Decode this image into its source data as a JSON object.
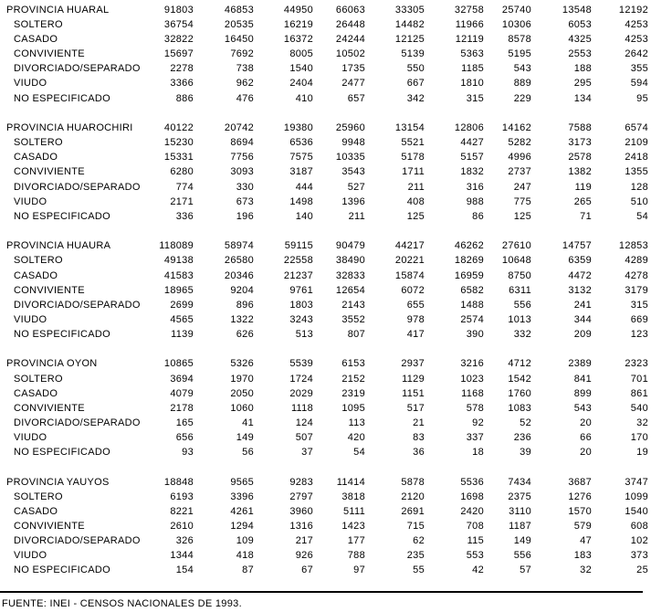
{
  "colors": {
    "background": "#ffffff",
    "text": "#000000",
    "rule": "#000000"
  },
  "table": {
    "blocks": [
      {
        "label": "PROVINCIA HUARAL",
        "totals": [
          91803,
          46853,
          44950,
          66063,
          33305,
          32758,
          25740,
          13548,
          12192
        ],
        "rows": [
          {
            "label": "SOLTERO",
            "values": [
              36754,
              20535,
              16219,
              26448,
              14482,
              11966,
              10306,
              6053,
              4253
            ]
          },
          {
            "label": "CASADO",
            "values": [
              32822,
              16450,
              16372,
              24244,
              12125,
              12119,
              8578,
              4325,
              4253
            ]
          },
          {
            "label": "CONVIVIENTE",
            "values": [
              15697,
              7692,
              8005,
              10502,
              5139,
              5363,
              5195,
              2553,
              2642
            ]
          },
          {
            "label": "DIVORCIADO/SEPARADO",
            "values": [
              2278,
              738,
              1540,
              1735,
              550,
              1185,
              543,
              188,
              355
            ]
          },
          {
            "label": "VIUDO",
            "values": [
              3366,
              962,
              2404,
              2477,
              667,
              1810,
              889,
              295,
              594
            ]
          },
          {
            "label": "NO ESPECIFICADO",
            "values": [
              886,
              476,
              410,
              657,
              342,
              315,
              229,
              134,
              95
            ]
          }
        ]
      },
      {
        "label": "PROVINCIA HUAROCHIRI",
        "totals": [
          40122,
          20742,
          19380,
          25960,
          13154,
          12806,
          14162,
          7588,
          6574
        ],
        "rows": [
          {
            "label": "SOLTERO",
            "values": [
              15230,
              8694,
              6536,
              9948,
              5521,
              4427,
              5282,
              3173,
              2109
            ]
          },
          {
            "label": "CASADO",
            "values": [
              15331,
              7756,
              7575,
              10335,
              5178,
              5157,
              4996,
              2578,
              2418
            ]
          },
          {
            "label": "CONVIVIENTE",
            "values": [
              6280,
              3093,
              3187,
              3543,
              1711,
              1832,
              2737,
              1382,
              1355
            ]
          },
          {
            "label": "DIVORCIADO/SEPARADO",
            "values": [
              774,
              330,
              444,
              527,
              211,
              316,
              247,
              119,
              128
            ]
          },
          {
            "label": "VIUDO",
            "values": [
              2171,
              673,
              1498,
              1396,
              408,
              988,
              775,
              265,
              510
            ]
          },
          {
            "label": "NO ESPECIFICADO",
            "values": [
              336,
              196,
              140,
              211,
              125,
              86,
              125,
              71,
              54
            ]
          }
        ]
      },
      {
        "label": "PROVINCIA HUAURA",
        "totals": [
          118089,
          58974,
          59115,
          90479,
          44217,
          46262,
          27610,
          14757,
          12853
        ],
        "rows": [
          {
            "label": "SOLTERO",
            "values": [
              49138,
              26580,
              22558,
              38490,
              20221,
              18269,
              10648,
              6359,
              4289
            ]
          },
          {
            "label": "CASADO",
            "values": [
              41583,
              20346,
              21237,
              32833,
              15874,
              16959,
              8750,
              4472,
              4278
            ]
          },
          {
            "label": "CONVIVIENTE",
            "values": [
              18965,
              9204,
              9761,
              12654,
              6072,
              6582,
              6311,
              3132,
              3179
            ]
          },
          {
            "label": "DIVORCIADO/SEPARADO",
            "values": [
              2699,
              896,
              1803,
              2143,
              655,
              1488,
              556,
              241,
              315
            ]
          },
          {
            "label": "VIUDO",
            "values": [
              4565,
              1322,
              3243,
              3552,
              978,
              2574,
              1013,
              344,
              669
            ]
          },
          {
            "label": "NO ESPECIFICADO",
            "values": [
              1139,
              626,
              513,
              807,
              417,
              390,
              332,
              209,
              123
            ]
          }
        ]
      },
      {
        "label": "PROVINCIA OYON",
        "totals": [
          10865,
          5326,
          5539,
          6153,
          2937,
          3216,
          4712,
          2389,
          2323
        ],
        "rows": [
          {
            "label": "SOLTERO",
            "values": [
              3694,
              1970,
              1724,
              2152,
              1129,
              1023,
              1542,
              841,
              701
            ]
          },
          {
            "label": "CASADO",
            "values": [
              4079,
              2050,
              2029,
              2319,
              1151,
              1168,
              1760,
              899,
              861
            ]
          },
          {
            "label": "CONVIVIENTE",
            "values": [
              2178,
              1060,
              1118,
              1095,
              517,
              578,
              1083,
              543,
              540
            ]
          },
          {
            "label": "DIVORCIADO/SEPARADO",
            "values": [
              165,
              41,
              124,
              113,
              21,
              92,
              52,
              20,
              32
            ]
          },
          {
            "label": "VIUDO",
            "values": [
              656,
              149,
              507,
              420,
              83,
              337,
              236,
              66,
              170
            ]
          },
          {
            "label": "NO ESPECIFICADO",
            "values": [
              93,
              56,
              37,
              54,
              36,
              18,
              39,
              20,
              19
            ]
          }
        ]
      },
      {
        "label": "PROVINCIA YAUYOS",
        "totals": [
          18848,
          9565,
          9283,
          11414,
          5878,
          5536,
          7434,
          3687,
          3747
        ],
        "rows": [
          {
            "label": "SOLTERO",
            "values": [
              6193,
              3396,
              2797,
              3818,
              2120,
              1698,
              2375,
              1276,
              1099
            ]
          },
          {
            "label": "CASADO",
            "values": [
              8221,
              4261,
              3960,
              5111,
              2691,
              2420,
              3110,
              1570,
              1540
            ]
          },
          {
            "label": "CONVIVIENTE",
            "values": [
              2610,
              1294,
              1316,
              1423,
              715,
              708,
              1187,
              579,
              608
            ]
          },
          {
            "label": "DIVORCIADO/SEPARADO",
            "values": [
              326,
              109,
              217,
              177,
              62,
              115,
              149,
              47,
              102
            ]
          },
          {
            "label": "VIUDO",
            "values": [
              1344,
              418,
              926,
              788,
              235,
              553,
              556,
              183,
              373
            ]
          },
          {
            "label": "NO ESPECIFICADO",
            "values": [
              154,
              87,
              67,
              97,
              55,
              42,
              57,
              32,
              25
            ]
          }
        ]
      }
    ]
  },
  "footer": {
    "source_note": "FUENTE: INEI - CENSOS NACIONALES DE 1993."
  }
}
